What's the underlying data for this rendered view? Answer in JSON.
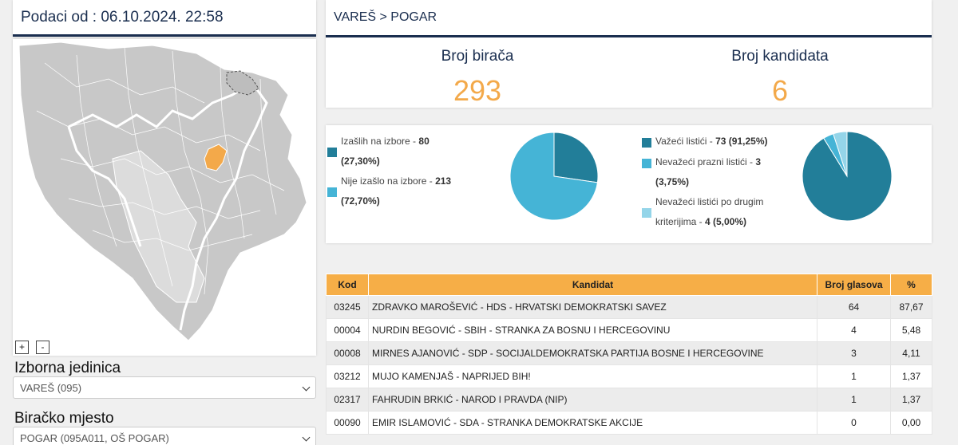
{
  "header": {
    "date_title": "Podaci od : 06.10.2024. 22:58"
  },
  "map": {
    "highlight_color": "#f3a94a",
    "zoom_in_label": "+",
    "zoom_out_label": "-"
  },
  "filters": {
    "izborna_jedinica": {
      "label": "Izborna jedinica",
      "value": "VAREŠ (095)"
    },
    "biracko_mjesto": {
      "label": "Biračko mjesto",
      "value": "POGAR (095A011, OŠ POGAR)"
    }
  },
  "location": {
    "breadcrumb": "VAREŠ > POGAR"
  },
  "stats": {
    "birac_label": "Broj birača",
    "birac_value": "293",
    "kand_label": "Broj kandidata",
    "kand_value": "6"
  },
  "turnout": {
    "items": [
      {
        "label": "Izašlih na izbore - ",
        "count": "80",
        "pct": "(27,30%)",
        "color": "#227e99"
      },
      {
        "label": "Nije izašlo na izbore - ",
        "count": "213",
        "pct": "(72,70%)",
        "color": "#45b4d6"
      }
    ],
    "fractions": [
      0.273,
      0.727
    ]
  },
  "ballots": {
    "items": [
      {
        "label": "Važeći listići - ",
        "count": "73 (91,25%)",
        "color": "#227e99"
      },
      {
        "label": "Nevažeći prazni listići - ",
        "count": "3",
        "pct": "(3,75%)",
        "color": "#45b4d6"
      },
      {
        "label": "Nevažeći listići po drugim",
        "label2": "kriterijima - ",
        "count": "4 (5,00%)",
        "color": "#94d5e9"
      }
    ],
    "fractions": [
      0.9125,
      0.0375,
      0.05
    ]
  },
  "results": {
    "headers": {
      "kod": "Kod",
      "kandidat": "Kandidat",
      "broj": "Broj glasova",
      "pct": "%"
    },
    "rows": [
      {
        "kod": "03245",
        "kandidat": "ZDRAVKO MAROŠEVIĆ - HDS - HRVATSKI DEMOKRATSKI SAVEZ",
        "broj": "64",
        "pct": "87,67"
      },
      {
        "kod": "00004",
        "kandidat": "NURDIN BEGOVIĆ - SBIH - STRANKA ZA BOSNU I HERCEGOVINU",
        "broj": "4",
        "pct": "5,48"
      },
      {
        "kod": "00008",
        "kandidat": "MIRNES AJANOVIĆ - SDP - SOCIJALDEMOKRATSKA PARTIJA BOSNE I HERCEGOVINE",
        "broj": "3",
        "pct": "4,11"
      },
      {
        "kod": "03212",
        "kandidat": "MUJO KAMENJAŠ - NAPRIJED BIH!",
        "broj": "1",
        "pct": "1,37"
      },
      {
        "kod": "02317",
        "kandidat": "FAHRUDIN BRKIĆ - NAROD I PRAVDA (NIP)",
        "broj": "1",
        "pct": "1,37"
      },
      {
        "kod": "00090",
        "kandidat": "EMIR ISLAMOVIĆ - SDA - STRANKA DEMOKRATSKE AKCIJE",
        "broj": "0",
        "pct": "0,00"
      }
    ]
  }
}
